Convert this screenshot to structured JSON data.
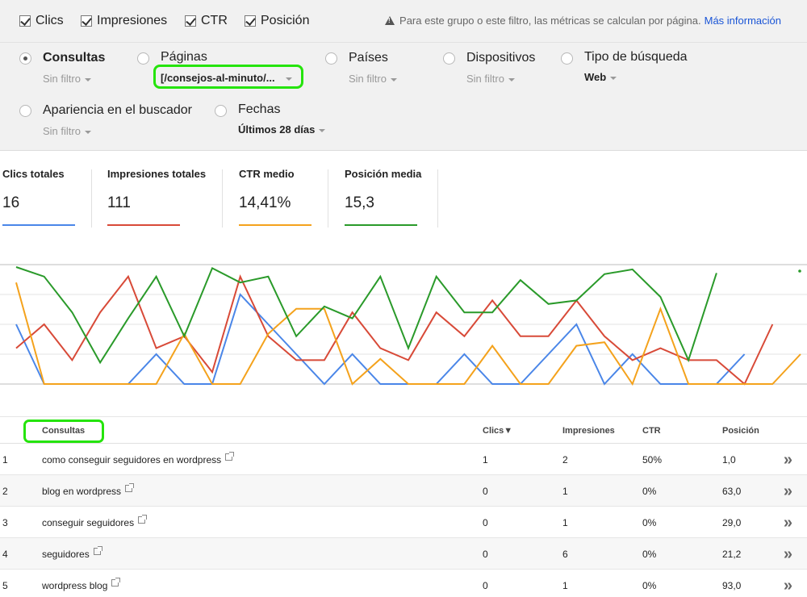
{
  "checkboxes": [
    {
      "label": "Clics",
      "checked": true
    },
    {
      "label": "Impresiones",
      "checked": true
    },
    {
      "label": "CTR",
      "checked": true
    },
    {
      "label": "Posición",
      "checked": true
    }
  ],
  "notice": {
    "text": "Para este grupo o este filtro, las métricas se calculan por página.",
    "link": "Más información"
  },
  "filters": {
    "consultas": {
      "label": "Consultas",
      "value": "Sin filtro",
      "selected": true
    },
    "paginas": {
      "label": "Páginas",
      "value": "[/consejos-al-minuto/..."
    },
    "paises": {
      "label": "Países",
      "value": "Sin filtro"
    },
    "dispositivos": {
      "label": "Dispositivos",
      "value": "Sin filtro"
    },
    "tipo": {
      "label": "Tipo de búsqueda",
      "value": "Web"
    },
    "apariencia": {
      "label": "Apariencia en el buscador",
      "value": "Sin filtro"
    },
    "fechas": {
      "label": "Fechas",
      "value": "Últimos 28 días"
    }
  },
  "metrics": [
    {
      "label": "Clics totales",
      "value": "16",
      "color": "#4a86e8"
    },
    {
      "label": "Impresiones totales",
      "value": "111",
      "color": "#d84a38"
    },
    {
      "label": "CTR medio",
      "value": "14,41%",
      "color": "#f4a21c"
    },
    {
      "label": "Posición media",
      "value": "15,3",
      "color": "#2a9a2a"
    }
  ],
  "chart_data": {
    "type": "line",
    "series": [
      {
        "name": "Clics",
        "color": "#4a86e8",
        "values": [
          0.5,
          0,
          0,
          0,
          0,
          0.25,
          0,
          0,
          0.75,
          0.5,
          0.25,
          0,
          0.25,
          0,
          0,
          0,
          0.25,
          0,
          0,
          0.25,
          0.5,
          0,
          0.25,
          0,
          0,
          0,
          0.25
        ]
      },
      {
        "name": "Impresiones",
        "color": "#d84a38",
        "values": [
          0.3,
          0.5,
          0.2,
          0.6,
          0.9,
          0.3,
          0.4,
          0.1,
          0.9,
          0.4,
          0.2,
          0.2,
          0.6,
          0.3,
          0.2,
          0.6,
          0.4,
          0.7,
          0.4,
          0.4,
          0.7,
          0.4,
          0.2,
          0.3,
          0.2,
          0.2,
          0,
          0.5
        ]
      },
      {
        "name": "CTR",
        "color": "#f4a21c",
        "values": [
          0.85,
          0,
          0,
          0,
          0,
          0,
          0.42,
          0,
          0,
          0.42,
          0.63,
          0.63,
          0,
          0.21,
          0,
          0,
          0,
          0.32,
          0,
          0,
          0.32,
          0.35,
          0,
          0.63,
          0,
          0,
          0,
          0,
          0.25
        ]
      },
      {
        "name": "Posición",
        "color": "#2a9a2a",
        "values": [
          0.98,
          0.9,
          0.6,
          0.18,
          0.55,
          0.9,
          0.4,
          0.97,
          0.85,
          0.9,
          0.4,
          0.65,
          0.55,
          0.9,
          0.3,
          0.9,
          0.6,
          0.6,
          0.87,
          0.67,
          0.7,
          0.92,
          0.96,
          0.73,
          0.2,
          0.93
        ]
      }
    ]
  },
  "table": {
    "headers": {
      "query": "Consultas",
      "clicks": "Clics▼",
      "impressions": "Impresiones",
      "ctr": "CTR",
      "position": "Posición"
    },
    "rows": [
      {
        "n": "1",
        "query": "como conseguir seguidores en wordpress",
        "clicks": "1",
        "impressions": "2",
        "ctr": "50%",
        "position": "1,0"
      },
      {
        "n": "2",
        "query": "blog en wordpress",
        "clicks": "0",
        "impressions": "1",
        "ctr": "0%",
        "position": "63,0"
      },
      {
        "n": "3",
        "query": "conseguir seguidores",
        "clicks": "0",
        "impressions": "1",
        "ctr": "0%",
        "position": "29,0"
      },
      {
        "n": "4",
        "query": "seguidores",
        "clicks": "0",
        "impressions": "6",
        "ctr": "0%",
        "position": "21,2"
      },
      {
        "n": "5",
        "query": "wordpress blog",
        "clicks": "0",
        "impressions": "1",
        "ctr": "0%",
        "position": "93,0"
      }
    ],
    "row_action": "»"
  }
}
